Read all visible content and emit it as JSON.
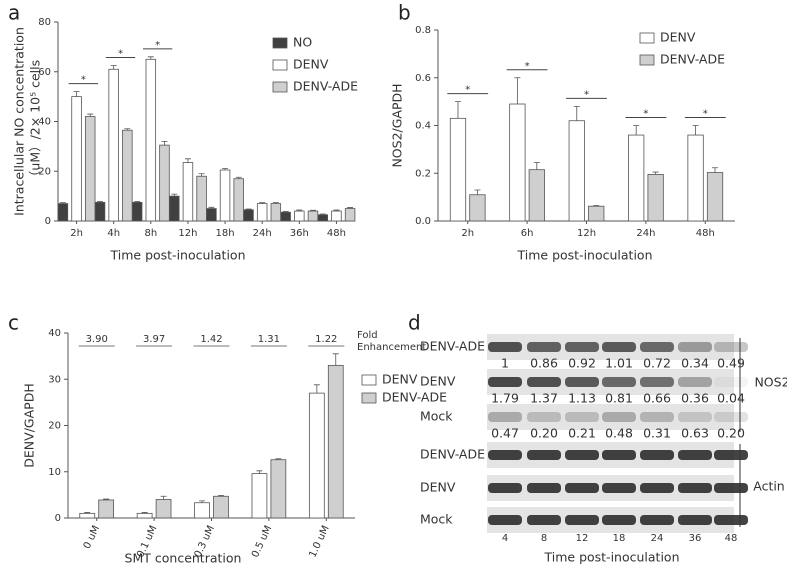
{
  "chart_data": [
    {
      "type": "bar",
      "panel": "a",
      "ylabel": [
        "Intracellular NO concentration",
        "（uM）/2× 10⁵ cells"
      ],
      "xlabel": "Time post-inoculation",
      "categories": [
        "2h",
        "4h",
        "8h",
        "12h",
        "18h",
        "24h",
        "36h",
        "48h"
      ],
      "series": [
        {
          "name": "NO",
          "color": "#404040",
          "values": [
            7,
            7.5,
            7.5,
            10,
            5,
            4.5,
            3.5,
            2.5
          ],
          "errors": [
            0.4,
            0.4,
            0.4,
            0.8,
            0.5,
            0.3,
            0.3,
            0.3
          ]
        },
        {
          "name": "DENV",
          "color": "#ffffff",
          "values": [
            50,
            61,
            65,
            23.5,
            20.5,
            7,
            4,
            4
          ],
          "errors": [
            2,
            1.5,
            1,
            1.5,
            0.6,
            0.4,
            0.4,
            0.4
          ]
        },
        {
          "name": "DENV-ADE",
          "color": "#cfcfcf",
          "values": [
            42,
            36.5,
            30.5,
            18,
            17,
            7,
            4,
            5
          ],
          "errors": [
            1,
            0.6,
            1.5,
            1,
            0.6,
            0.4,
            0.3,
            0.4
          ]
        }
      ],
      "significance": [
        "*",
        "*",
        "*",
        null,
        null,
        null,
        null,
        null
      ],
      "ylim": [
        0,
        80
      ],
      "yticks": [
        0,
        20,
        40,
        60,
        80
      ]
    },
    {
      "type": "bar",
      "panel": "b",
      "ylabel": [
        "NOS2/GAPDH"
      ],
      "xlabel": "Time post-inoculation",
      "categories": [
        "2h",
        "6h",
        "12h",
        "24h",
        "48h"
      ],
      "series": [
        {
          "name": "DENV",
          "color": "#ffffff",
          "values": [
            0.43,
            0.49,
            0.42,
            0.36,
            0.36
          ],
          "errors": [
            0.07,
            0.11,
            0.06,
            0.04,
            0.04
          ]
        },
        {
          "name": "DENV-ADE",
          "color": "#cfcfcf",
          "values": [
            0.11,
            0.215,
            0.062,
            0.195,
            0.203
          ],
          "errors": [
            0.02,
            0.03,
            0.003,
            0.01,
            0.02
          ]
        }
      ],
      "significance": [
        "*",
        "*",
        "*",
        "*",
        "*"
      ],
      "ylim": [
        0,
        0.8
      ],
      "yticks": [
        {
          "value": 0,
          "label": "0.0"
        },
        0.2,
        0.4,
        0.6,
        0.8
      ]
    },
    {
      "type": "bar",
      "panel": "c",
      "ylabel": [
        "DENV/GAPDH"
      ],
      "xlabel": "SMT concentration",
      "categories": [
        "0 uM",
        "0.1 uM",
        "0.3 uM",
        "0.5 uM",
        "1.0 uM"
      ],
      "series": [
        {
          "name": "DENV",
          "color": "#ffffff",
          "values": [
            1,
            1,
            3.3,
            9.6,
            27
          ],
          "errors": [
            0.2,
            0.2,
            0.4,
            0.6,
            1.8
          ]
        },
        {
          "name": "DENV-ADE",
          "color": "#cfcfcf",
          "values": [
            3.9,
            4,
            4.7,
            12.6,
            33
          ],
          "errors": [
            0.2,
            0.7,
            0.2,
            0.2,
            2.5
          ]
        }
      ],
      "fold_enhancement": [
        "3.90",
        "3.97",
        "1.42",
        "1.31",
        "1.22"
      ],
      "fold_label": [
        "Fold",
        "Enhancement"
      ],
      "ylim": [
        0,
        40
      ],
      "yticks": [
        0,
        10,
        20,
        30,
        40
      ]
    }
  ],
  "blot": {
    "panel": "d",
    "nos2_rows": [
      {
        "label": "DENV-ADE",
        "values": [
          "1",
          "0.86",
          "0.92",
          "1.01",
          "0.72",
          "0.34",
          "0.49"
        ]
      },
      {
        "label": "DENV",
        "values": [
          "1.79",
          "1.37",
          "1.13",
          "0.81",
          "0.66",
          "0.36",
          "0.04"
        ]
      },
      {
        "label": "Mock",
        "values": [
          "0.47",
          "0.20",
          "0.21",
          "0.48",
          "0.31",
          "0.63",
          "0.20"
        ]
      }
    ],
    "actin_rows": [
      "DENV-ADE",
      "DENV",
      "Mock"
    ],
    "group_labels": [
      "NOS2",
      "Actin"
    ],
    "lanes": [
      "4",
      "8",
      "12",
      "18",
      "24",
      "36",
      "48"
    ],
    "xlabel": "Time post-inoculation"
  }
}
